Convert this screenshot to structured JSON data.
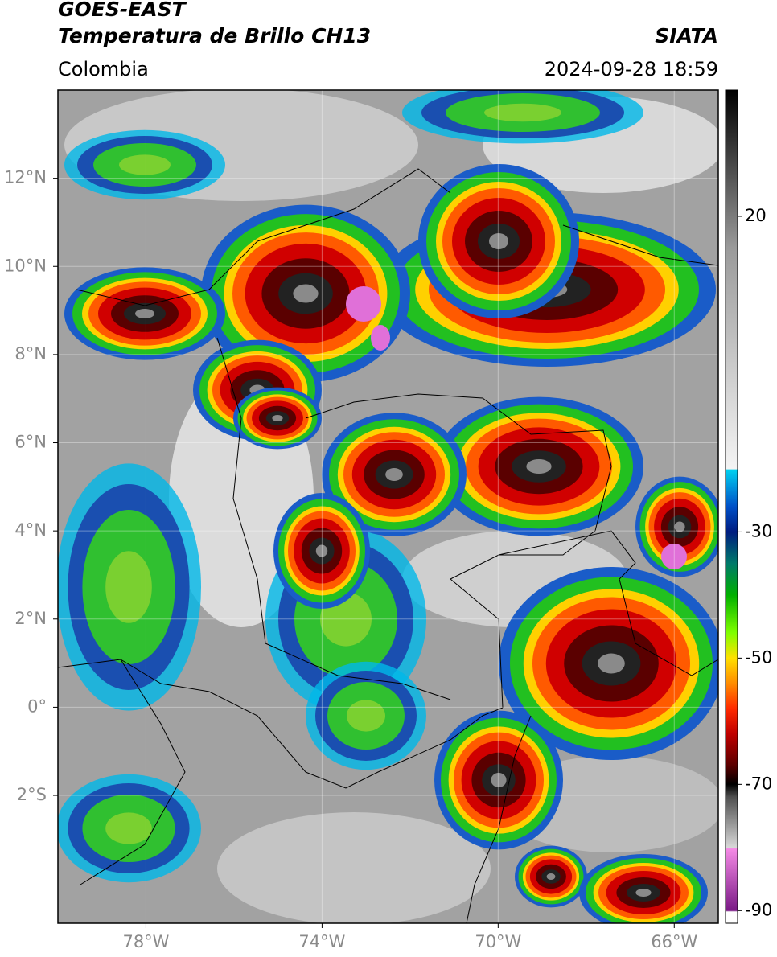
{
  "header": {
    "title_line1": "GOES-EAST",
    "title_line2": "Temperatura de Brillo CH13",
    "source": "SIATA",
    "region": "Colombia",
    "datetime": "2024-09-28 18:59"
  },
  "map": {
    "xlim": [
      -80,
      -65
    ],
    "ylim": [
      -4.9,
      14
    ],
    "xticks": [
      {
        "value": -78,
        "label": "78°W"
      },
      {
        "value": -74,
        "label": "74°W"
      },
      {
        "value": -70,
        "label": "70°W"
      },
      {
        "value": -66,
        "label": "66°W"
      }
    ],
    "yticks": [
      {
        "value": 12,
        "label": "12°N"
      },
      {
        "value": 10,
        "label": "10°N"
      },
      {
        "value": 8,
        "label": "8°N"
      },
      {
        "value": 6,
        "label": "6°N"
      },
      {
        "value": 4,
        "label": "4°N"
      },
      {
        "value": 2,
        "label": "2°N"
      },
      {
        "value": 0,
        "label": "0°"
      },
      {
        "value": -2,
        "label": "2°S"
      }
    ],
    "grid": true
  },
  "colorbar": {
    "lim": [
      -92,
      40
    ],
    "ticks": [
      20,
      -30,
      -50,
      -70,
      -90
    ],
    "stops": [
      [
        -92,
        "#ffffff"
      ],
      [
        -90.2,
        "#ffffff"
      ],
      [
        -90,
        "#7a1a86"
      ],
      [
        -80.2,
        "#f58ae6"
      ],
      [
        -80,
        "#d8d8d8"
      ],
      [
        -72,
        "#505050"
      ],
      [
        -70,
        "#000000"
      ],
      [
        -67,
        "#5a0000"
      ],
      [
        -62,
        "#c00000"
      ],
      [
        -58,
        "#ff2a00"
      ],
      [
        -54,
        "#ff8c00"
      ],
      [
        -50,
        "#ffe000"
      ],
      [
        -46,
        "#80ff00"
      ],
      [
        -40,
        "#00b000"
      ],
      [
        -35,
        "#007a6a"
      ],
      [
        -30,
        "#001c80"
      ],
      [
        -26,
        "#0050c8"
      ],
      [
        -20.2,
        "#00d0f0"
      ],
      [
        -20,
        "#f4f4f4"
      ],
      [
        15,
        "#9a9a9a"
      ],
      [
        40,
        "#000000"
      ]
    ]
  }
}
